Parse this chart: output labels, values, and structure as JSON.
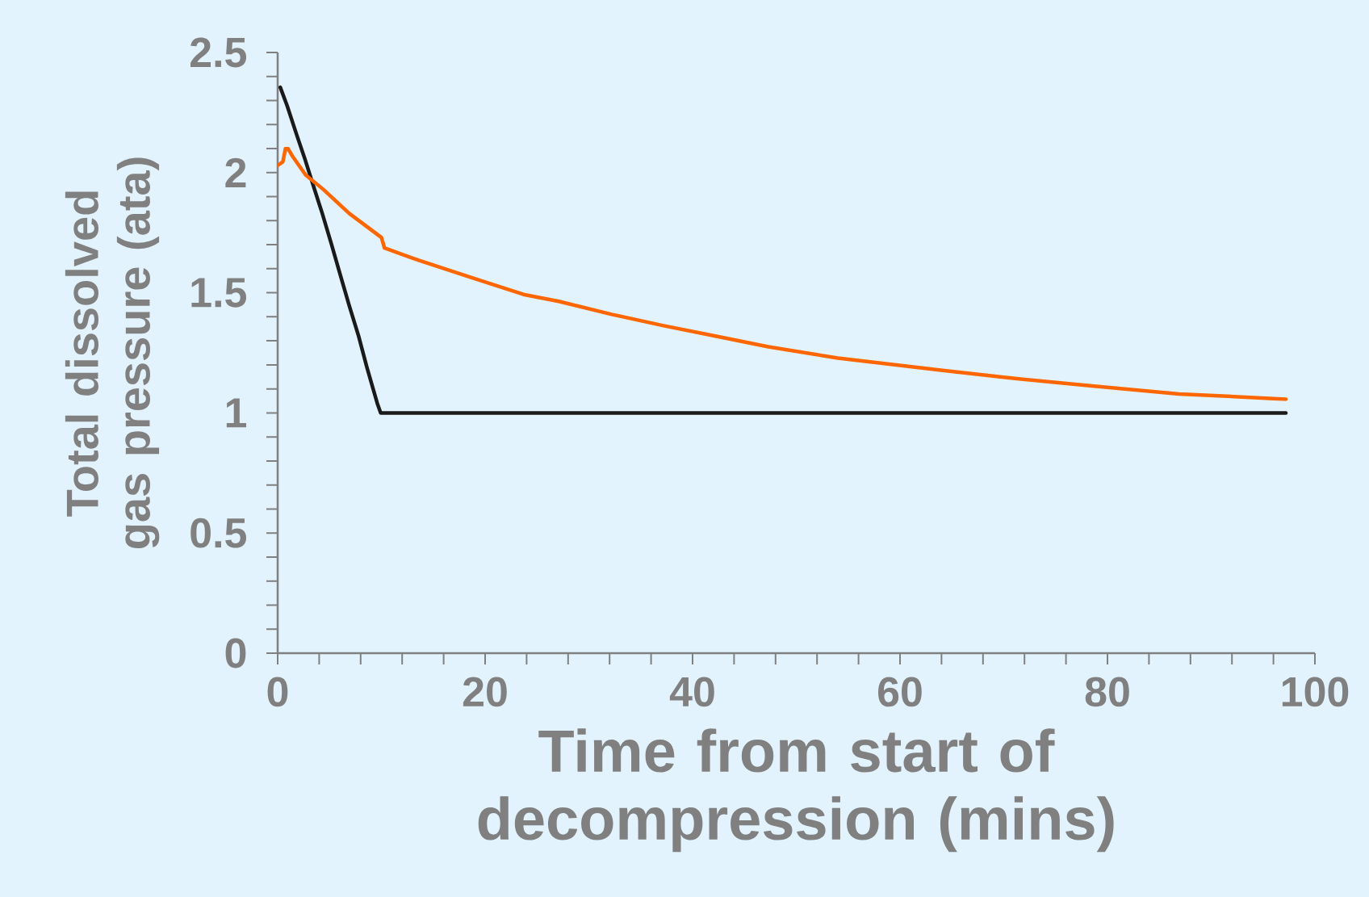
{
  "chart_data": {
    "type": "line",
    "xlabel": "Time from start of decompression (mins)",
    "ylabel": "Total dissolved gas pressure (ata)",
    "xlim": [
      0,
      100
    ],
    "ylim": [
      0,
      2.5
    ],
    "xticks": [
      0,
      20,
      40,
      60,
      80,
      100
    ],
    "yticks": [
      0,
      0.5,
      1,
      1.5,
      2,
      2.5
    ],
    "grid": false,
    "line_style": "solid",
    "marker": "none",
    "series": [
      {
        "color": "#1a1a1a",
        "x": [
          0.25,
          0.9,
          1.85,
          2.6,
          3.5,
          4.3,
          5.2,
          6.0,
          6.9,
          7.8,
          8.6,
          9.2,
          9.6,
          9.93,
          20,
          40,
          60,
          80,
          97.2
        ],
        "values": [
          2.355,
          2.28,
          2.155,
          2.06,
          1.937,
          1.83,
          1.7,
          1.58,
          1.446,
          1.32,
          1.19,
          1.1,
          1.04,
          1.0,
          1.0,
          1.0,
          1.0,
          1.0,
          1.0
        ]
      },
      {
        "color": "#ff6600",
        "x": [
          0,
          0.5,
          0.75,
          1.0,
          1.4,
          2.7,
          4.4,
          6.9,
          10.0,
          10.3,
          13.6,
          18.7,
          23.7,
          27.1,
          32.2,
          37.2,
          42.3,
          47.3,
          54.0,
          64.1,
          70.0,
          78.5,
          86.9,
          97.2
        ],
        "values": [
          2.03,
          2.045,
          2.1,
          2.1,
          2.07,
          1.99,
          1.93,
          1.83,
          1.73,
          1.686,
          1.635,
          1.563,
          1.493,
          1.464,
          1.41,
          1.363,
          1.319,
          1.275,
          1.228,
          1.177,
          1.148,
          1.112,
          1.079,
          1.057
        ]
      }
    ]
  }
}
